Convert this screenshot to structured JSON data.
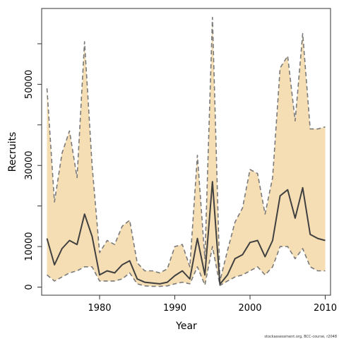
{
  "chart_data": {
    "type": "area",
    "xlabel": "Year",
    "ylabel": "Recruits",
    "xlim": [
      1972.3,
      2010.7
    ],
    "ylim": [
      -2000,
      68700
    ],
    "x_ticks": [
      1980,
      1990,
      2000,
      2010
    ],
    "y_ticks": [
      0,
      10000,
      30000,
      50000
    ],
    "grid": false,
    "legend": "none",
    "footnote": "stockassessment.org, BCC-course, r2048",
    "colors": {
      "band": "#f5deb3",
      "median": "#404040",
      "bounds": "#7a7a7a",
      "axis": "#333333"
    },
    "x": [
      1973,
      1974,
      1975,
      1976,
      1977,
      1978,
      1979,
      1980,
      1981,
      1982,
      1983,
      1984,
      1985,
      1986,
      1987,
      1988,
      1989,
      1990,
      1991,
      1992,
      1993,
      1994,
      1995,
      1996,
      1997,
      1998,
      1999,
      2000,
      2001,
      2002,
      2003,
      2004,
      2005,
      2006,
      2007,
      2008,
      2009,
      2010
    ],
    "series": [
      {
        "role": "upper",
        "values": [
          49000,
          21000,
          33000,
          38500,
          27000,
          60500,
          30000,
          8500,
          11500,
          10500,
          15000,
          16500,
          6000,
          4000,
          4000,
          3500,
          4500,
          10000,
          10500,
          5000,
          32500,
          7000,
          66500,
          1500,
          9000,
          16000,
          19500,
          29000,
          28000,
          18000,
          27000,
          54000,
          57000,
          41000,
          62500,
          39000,
          39000,
          39500
        ]
      },
      {
        "role": "median",
        "values": [
          12000,
          5500,
          9500,
          11500,
          10500,
          18000,
          12500,
          3000,
          4000,
          3500,
          5500,
          6500,
          2000,
          1200,
          1000,
          800,
          1200,
          2800,
          4000,
          2000,
          12000,
          3000,
          26000,
          700,
          3000,
          7000,
          8000,
          11000,
          11500,
          7500,
          11500,
          22500,
          24000,
          17000,
          24500,
          13000,
          12000,
          11500
        ]
      },
      {
        "role": "lower",
        "values": [
          3000,
          1500,
          2500,
          3500,
          4000,
          5000,
          5000,
          1500,
          1500,
          1500,
          2000,
          3500,
          800,
          300,
          200,
          200,
          300,
          800,
          1200,
          800,
          5000,
          500,
          10000,
          400,
          1500,
          2500,
          3000,
          4000,
          5000,
          3000,
          5000,
          10000,
          10000,
          7000,
          9500,
          5000,
          4000,
          4000
        ]
      }
    ]
  }
}
